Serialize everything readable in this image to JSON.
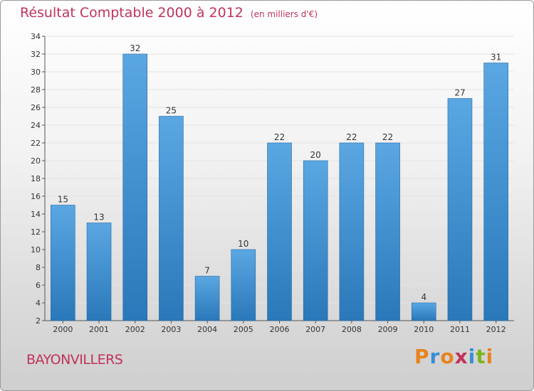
{
  "header": {
    "title": "Résultat Comptable 2000 à 2012",
    "unit": "(en milliers d'€)"
  },
  "footer": {
    "city": "BAYONVILLERS",
    "logo": "Proxiti",
    "logo_letters": [
      "P",
      "r",
      "o",
      "x",
      "i",
      "t",
      "i"
    ],
    "logo_colors": [
      "#e8831f",
      "#3a8ed4",
      "#e8831f",
      "#c0335a",
      "#3a8ed4",
      "#7ab51d",
      "#e8831f"
    ]
  },
  "colors": {
    "bar_light": "#5aa7e3",
    "bar_dark": "#2a78b9",
    "title": "#c0335a",
    "grid": "#e3e3e3",
    "axis": "#555555"
  },
  "chart_data": {
    "type": "bar",
    "title": "Résultat Comptable 2000 à 2012",
    "xlabel": "",
    "ylabel": "",
    "categories": [
      "2000",
      "2001",
      "2002",
      "2003",
      "2004",
      "2005",
      "2006",
      "2007",
      "2008",
      "2009",
      "2010",
      "2011",
      "2012"
    ],
    "values": [
      15,
      13,
      32,
      25,
      7,
      10,
      22,
      20,
      22,
      22,
      4,
      27,
      31
    ],
    "ylim": [
      2,
      34
    ],
    "yticks": [
      2,
      4,
      6,
      8,
      10,
      12,
      14,
      16,
      18,
      20,
      22,
      24,
      26,
      28,
      30,
      32,
      34
    ],
    "grid": true,
    "legend": "none"
  }
}
